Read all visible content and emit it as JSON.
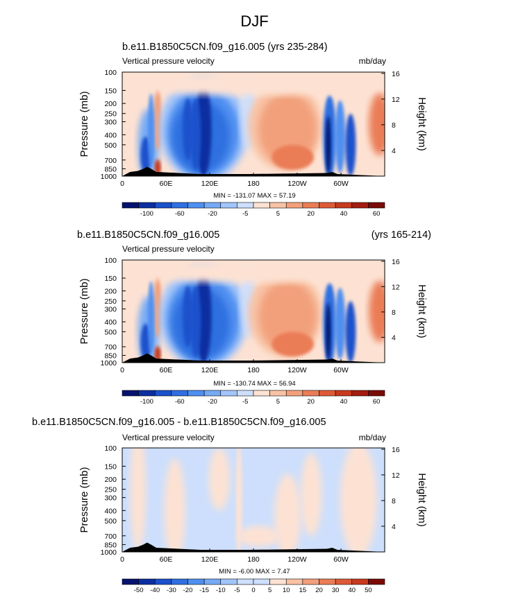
{
  "title": "DJF",
  "panels": [
    {
      "subtitle_left": "b.e11.B1850C5CN.f09_g16.005 (yrs 235-284)",
      "subtitle_right": "",
      "left_string": "Vertical pressure velocity",
      "right_string": "mb/day",
      "min_max": "MIN = -131.07  MAX =  57.19",
      "colorbar_labels": [
        "-100",
        "-60",
        "-20",
        "-5",
        "5",
        "20",
        "40",
        "60"
      ],
      "colorbar_colors": [
        "#05136e",
        "#0b2fa0",
        "#1a51cc",
        "#2f6fe0",
        "#4f8ff0",
        "#76aaf5",
        "#a2c5fa",
        "#cddffc",
        "#fde2d3",
        "#f8c2a4",
        "#f2a07c",
        "#ea7d57",
        "#de5a37",
        "#c83a1e",
        "#a41d10",
        "#7a0a06"
      ],
      "palette": "full"
    },
    {
      "subtitle_left": "b.e11.B1850C5CN.f09_g16.005",
      "subtitle_right": "(yrs 165-214)",
      "left_string": "Vertical pressure velocity",
      "right_string": "",
      "min_max": "MIN = -130.74  MAX =  56.94",
      "colorbar_labels": [
        "-100",
        "-60",
        "-20",
        "-5",
        "5",
        "20",
        "40",
        "60"
      ],
      "colorbar_colors": [
        "#05136e",
        "#0b2fa0",
        "#1a51cc",
        "#2f6fe0",
        "#4f8ff0",
        "#76aaf5",
        "#a2c5fa",
        "#cddffc",
        "#fde2d3",
        "#f8c2a4",
        "#f2a07c",
        "#ea7d57",
        "#de5a37",
        "#c83a1e",
        "#a41d10",
        "#7a0a06"
      ],
      "palette": "full"
    },
    {
      "subtitle_left": "b.e11.B1850C5CN.f09_g16.005 - b.e11.B1850C5CN.f09_g16.005",
      "subtitle_right": "",
      "left_string": "Vertical pressure velocity",
      "right_string": "mb/day",
      "min_max": "MIN =  -6.00  MAX =   7.47",
      "colorbar_labels": [
        "-50",
        "-40",
        "-30",
        "-20",
        "-15",
        "-10",
        "-5",
        "0",
        "5",
        "10",
        "15",
        "20",
        "30",
        "40",
        "50"
      ],
      "colorbar_colors": [
        "#05136e",
        "#0b2fa0",
        "#1a51cc",
        "#2f6fe0",
        "#4f8ff0",
        "#76aaf5",
        "#a2c5fa",
        "#cddffc",
        "#cddffc",
        "#fde2d3",
        "#f8c2a4",
        "#f2a07c",
        "#ea7d57",
        "#de5a37",
        "#c83a1e",
        "#7a0a06"
      ],
      "palette": "diff"
    }
  ],
  "axes": {
    "ylabel_left": "Pressure (mb)",
    "ylabel_right": "Height (km)",
    "pressure_ticks": [
      "100",
      "150",
      "200",
      "250",
      "300",
      "400",
      "500",
      "700",
      "850",
      "1000"
    ],
    "height_ticks": [
      "16",
      "12",
      "8",
      "4"
    ],
    "lon_ticks": [
      "0",
      "60E",
      "120E",
      "180",
      "120W",
      "60W"
    ]
  },
  "chart_data": {
    "type": "heatmap",
    "title": "DJF",
    "variable": "Vertical pressure velocity",
    "units": "mb/day",
    "x": "longitude (0 to 360)",
    "y": "pressure (1000 to 100 mb)",
    "panels": [
      {
        "label": "b.e11.B1850C5CN.f09_g16.005 (yrs 235-284)",
        "min": -131.07,
        "max": 57.19
      },
      {
        "label": "b.e11.B1850C5CN.f09_g16.005 (yrs 165-214)",
        "min": -130.74,
        "max": 56.94
      },
      {
        "label": "b.e11.B1850C5CN.f09_g16.005 - b.e11.B1850C5CN.f09_g16.005",
        "min": -6.0,
        "max": 7.47
      }
    ]
  }
}
